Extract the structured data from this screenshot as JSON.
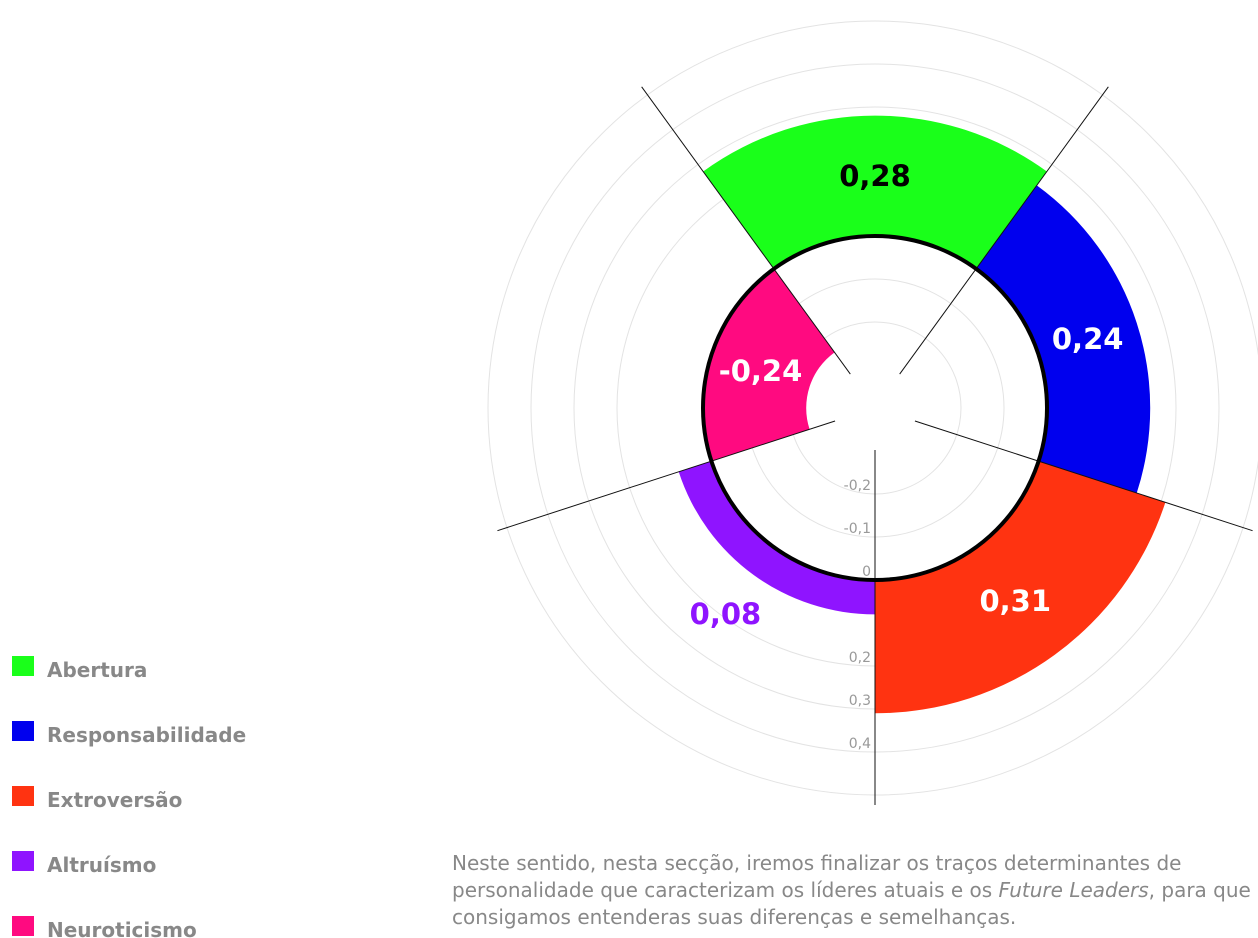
{
  "chart_data": {
    "type": "polar_area",
    "categories": [
      "Abertura",
      "Responsabilidade",
      "Extroversão",
      "Altruísmo",
      "Neuroticismo"
    ],
    "series": [
      {
        "name": "Traços",
        "colors": [
          "#1aff1a",
          "#0000ee",
          "#ff3311",
          "#8f14ff",
          "#ff0a80"
        ],
        "values": [
          0.28,
          0.24,
          0.31,
          0.08,
          -0.24
        ],
        "value_labels": [
          "0,28",
          "0,24",
          "0,31",
          "0,08",
          "-0,24"
        ]
      }
    ],
    "ylim": [
      -0.4,
      0.5
    ],
    "yticks": [
      {
        "value": -0.2,
        "label": "-0,2"
      },
      {
        "value": -0.1,
        "label": "-0,1"
      },
      0,
      {
        "value": 0.2,
        "label": "0,2"
      },
      {
        "value": 0.3,
        "label": "0,3"
      },
      {
        "value": 0.4,
        "label": "0,4"
      }
    ],
    "grid": true,
    "legend": "left",
    "text": {
      "before": "Neste sentido, nesta secção, iremos finalizar os traços determinantes de personalidade que caracterizam os líderes atuais e os ",
      "emphasis": "Future Leaders",
      "after": ", para que consigamos entenderas suas diferenças e semelhanças."
    }
  }
}
